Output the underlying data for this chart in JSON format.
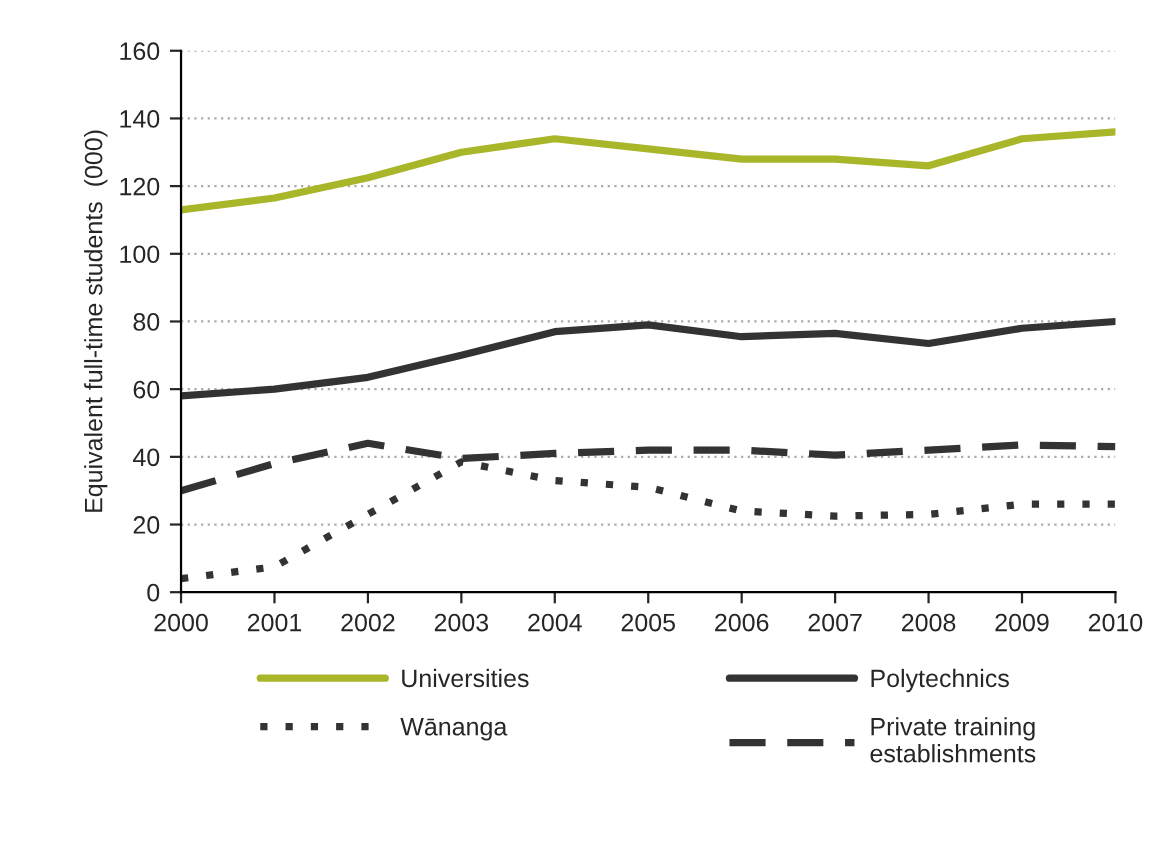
{
  "chart_data": {
    "type": "line",
    "ylabel": "Equivalent full-time students  (000)",
    "x": [
      2000,
      2001,
      2002,
      2003,
      2004,
      2005,
      2006,
      2007,
      2008,
      2009,
      2010
    ],
    "series": [
      {
        "name": "Universities",
        "color": "#a9b62a",
        "line_style": "solid",
        "values": [
          113,
          116.5,
          122.5,
          130,
          134,
          131,
          128,
          128,
          126,
          134,
          136
        ]
      },
      {
        "name": "Polytechnics",
        "color": "#333333",
        "line_style": "solid",
        "values": [
          58,
          60,
          63.5,
          70,
          77,
          79,
          75.5,
          76.5,
          73.5,
          78,
          80
        ]
      },
      {
        "name": "Wānanga",
        "color": "#333333",
        "line_style": "dotted",
        "values": [
          4,
          7.5,
          23,
          38.5,
          33,
          31,
          24,
          22.5,
          23,
          26,
          26
        ]
      },
      {
        "name": "Private training\nestablishments",
        "color": "#333333",
        "line_style": "dashed",
        "values": [
          30,
          38,
          44,
          39.5,
          41,
          42,
          42,
          40.5,
          42,
          43.5,
          43
        ]
      }
    ],
    "xlim": [
      2000,
      2010
    ],
    "xticks": [
      2000,
      2001,
      2002,
      2003,
      2004,
      2005,
      2006,
      2007,
      2008,
      2009,
      2010
    ],
    "ylim": [
      0,
      160
    ],
    "yticks": [
      0,
      20,
      40,
      60,
      80,
      100,
      120,
      140,
      160
    ],
    "grid": "y",
    "legend": "bottom",
    "marker": "none"
  }
}
